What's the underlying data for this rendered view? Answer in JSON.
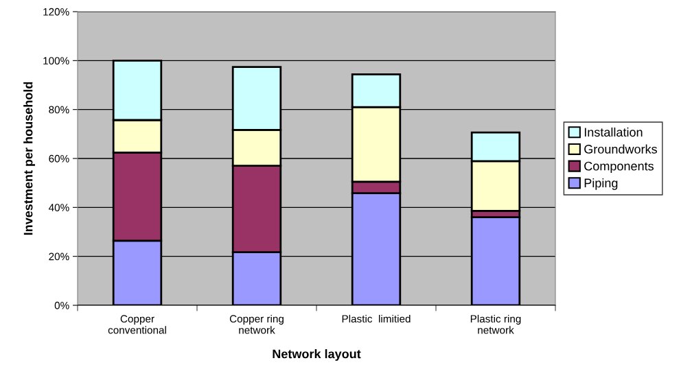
{
  "chart_data": {
    "type": "bar",
    "stacked": true,
    "xlabel": "Network layout",
    "ylabel": "Investment per household",
    "categories": [
      "Copper\nconventional",
      "Copper ring\nnetwork",
      "Plastic  limitied",
      "Plastic ring\nnetwork"
    ],
    "series": [
      {
        "name": "Piping",
        "color": "#9999ff",
        "values": [
          26.4,
          21.7,
          45.8,
          36.0
        ]
      },
      {
        "name": "Components",
        "color": "#993366",
        "values": [
          36.0,
          35.3,
          4.7,
          2.6
        ]
      },
      {
        "name": "Groundworks",
        "color": "#ffffcc",
        "values": [
          13.3,
          14.7,
          30.5,
          20.3
        ]
      },
      {
        "name": "Installation",
        "color": "#ccffff",
        "values": [
          24.3,
          25.7,
          13.4,
          11.7
        ]
      }
    ],
    "ylim": [
      0,
      120
    ],
    "yticks": [
      {
        "value": 0,
        "label": "0%"
      },
      {
        "value": 20,
        "label": "20%"
      },
      {
        "value": 40,
        "label": "40%"
      },
      {
        "value": 60,
        "label": "60%"
      },
      {
        "value": 80,
        "label": "80%"
      },
      {
        "value": 100,
        "label": "100%"
      },
      {
        "value": 120,
        "label": "120%"
      }
    ],
    "grid": "y",
    "legend": "right"
  }
}
